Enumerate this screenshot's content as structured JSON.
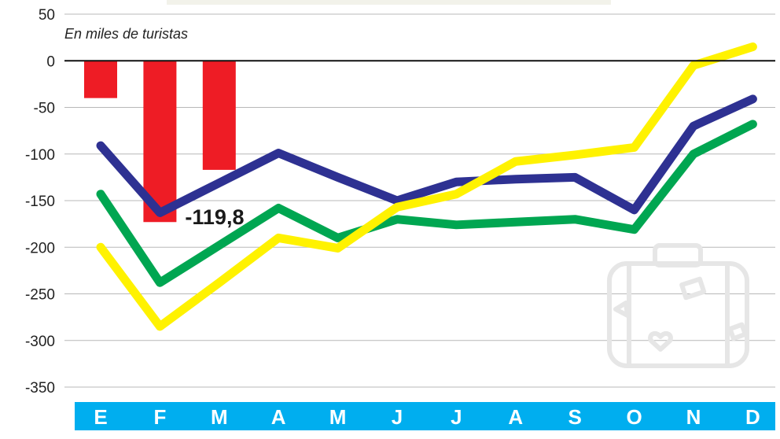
{
  "chart_data": {
    "type": "bar",
    "unit_label": "En miles de turistas",
    "categories": [
      "E",
      "F",
      "M",
      "A",
      "M",
      "J",
      "J",
      "A",
      "S",
      "O",
      "N",
      "D"
    ],
    "y_ticks": [
      "50",
      "0",
      "-50",
      "-100",
      "-150",
      "-200",
      "-250",
      "-300",
      "-350"
    ],
    "ylim": [
      -355,
      50
    ],
    "grid": true,
    "bars": {
      "color": "#ee1c25",
      "values": [
        -40,
        -173,
        -117,
        null,
        null,
        null,
        null,
        null,
        null,
        null,
        null,
        null
      ]
    },
    "series": [
      {
        "color": "#2e3192",
        "values": [
          -91,
          -163,
          -131,
          -99,
          -125,
          -150,
          -130,
          -127,
          -125,
          -160,
          -70,
          -41
        ]
      },
      {
        "color": "#00a651",
        "values": [
          -143,
          -238,
          -198,
          -158,
          -190,
          -170,
          -176,
          -173,
          -170,
          -181,
          -100,
          -68
        ]
      },
      {
        "color": "#fff200",
        "values": [
          -200,
          -285,
          -238,
          -190,
          -201,
          -157,
          -143,
          -108,
          -101,
          -93,
          -5,
          15
        ]
      }
    ],
    "annotations": [
      {
        "text": "-119,8",
        "x_index": 1,
        "y": -167
      }
    ],
    "month_bar_color": "#00aeef"
  }
}
